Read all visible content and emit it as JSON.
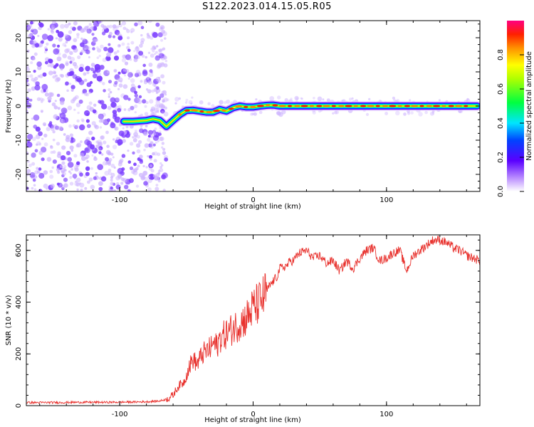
{
  "title": "S122.2023.014.15.05.R05",
  "colors": {
    "noise_purple": "#7a3cff",
    "noise_light": "#cbb0ff",
    "snr_line": "#e8312d",
    "axis": "#000000"
  },
  "chart_data": [
    {
      "type": "heatmap",
      "title": "S122.2023.014.15.05.R05",
      "xlabel": "Height of straight line (km)",
      "ylabel": "Frequency (Hz)",
      "xlim": [
        -170,
        170
      ],
      "ylim": [
        -25,
        25
      ],
      "xticks": [
        -100,
        0,
        100
      ],
      "yticks": [
        -20,
        -10,
        0,
        10,
        20
      ],
      "colorbar": {
        "label": "Normalized spectral amplitude",
        "range": [
          0,
          1
        ],
        "ticks": [
          "0.0",
          "0.2",
          "0.4",
          "0.6",
          "0.8"
        ],
        "colormap": "rainbow"
      },
      "noise_region_x": [
        -170,
        -75
      ],
      "signal_ridge": {
        "x": [
          -97,
          -90,
          -80,
          -75,
          -70,
          -65,
          -60,
          -55,
          -50,
          -45,
          -40,
          -35,
          -30,
          -25,
          -20,
          -15,
          -10,
          -5,
          0,
          5,
          10,
          15,
          20,
          30,
          50,
          80,
          100,
          130,
          168
        ],
        "frequency": [
          -4.5,
          -4.5,
          -4.2,
          -3.8,
          -4.2,
          -6.0,
          -4.2,
          -2.5,
          -1.3,
          -1.2,
          -1.5,
          -1.8,
          -1.8,
          -1.0,
          -1.5,
          -0.5,
          0.0,
          -0.3,
          -0.3,
          0.0,
          0.2,
          0.3,
          0.0,
          0.0,
          0.0,
          0.0,
          0.0,
          0.0,
          0.0
        ]
      }
    },
    {
      "type": "line",
      "xlabel": "Height of straight line (km)",
      "ylabel": "SNR (10 * v/v)",
      "xlim": [
        -170,
        170
      ],
      "ylim": [
        0,
        660
      ],
      "xticks": [
        -100,
        0,
        100
      ],
      "yticks": [
        0,
        200,
        400,
        600
      ],
      "series": [
        {
          "color": "#e8312d",
          "x": [
            -170,
            -150,
            -130,
            -110,
            -90,
            -80,
            -70,
            -65,
            -60,
            -58,
            -55,
            -52,
            -50,
            -48,
            -45,
            -42,
            -40,
            -38,
            -35,
            -32,
            -30,
            -27,
            -25,
            -22,
            -20,
            -17,
            -15,
            -12,
            -10,
            -7,
            -5,
            -2,
            0,
            3,
            5,
            8,
            10,
            12,
            15,
            18,
            20,
            25,
            28,
            30,
            33,
            35,
            40,
            45,
            50,
            55,
            60,
            65,
            70,
            75,
            80,
            85,
            90,
            95,
            100,
            105,
            110,
            115,
            120,
            125,
            130,
            135,
            140,
            145,
            150,
            155,
            160,
            165,
            170
          ],
          "values": [
            12,
            12,
            13,
            13,
            14,
            15,
            18,
            25,
            40,
            60,
            80,
            90,
            120,
            150,
            180,
            160,
            180,
            200,
            210,
            220,
            240,
            230,
            260,
            270,
            280,
            290,
            300,
            310,
            320,
            330,
            340,
            360,
            380,
            390,
            400,
            420,
            440,
            460,
            480,
            500,
            530,
            540,
            560,
            560,
            580,
            590,
            600,
            570,
            580,
            550,
            560,
            520,
            560,
            530,
            570,
            600,
            610,
            560,
            570,
            590,
            600,
            520,
            580,
            600,
            620,
            640,
            640,
            630,
            610,
            600,
            580,
            570,
            560
          ]
        }
      ]
    }
  ]
}
